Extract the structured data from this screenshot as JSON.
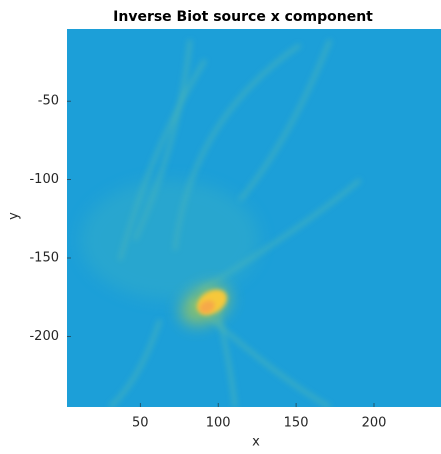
{
  "chart_data": {
    "type": "heatmap",
    "title": "Inverse Biot source x component",
    "x_label": "x",
    "y_label": "y",
    "xlim": [
      3,
      243
    ],
    "xticks": [
      50,
      100,
      150,
      200
    ],
    "ylim": [
      -245,
      -4
    ],
    "yticks": [
      -50,
      -100,
      -150,
      -200
    ]
  }
}
